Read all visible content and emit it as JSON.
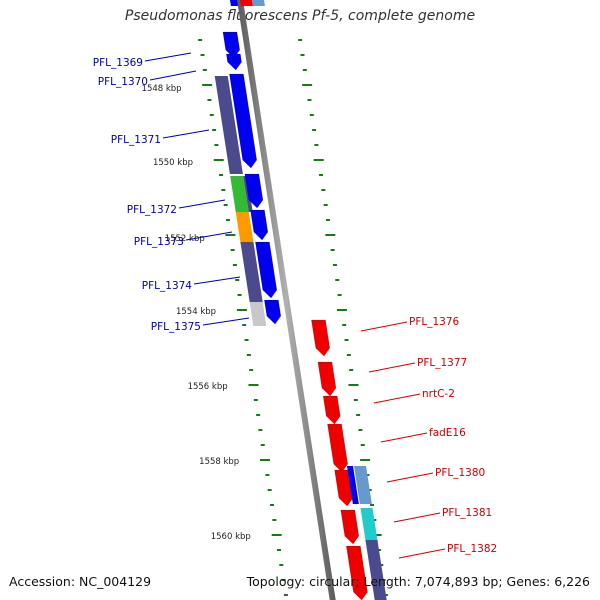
{
  "title": "Pseudomonas fluorescens Pf-5, complete genome",
  "accession": "Accession: NC_004129",
  "topology": "Topology: circular; Length: 7,074,893 bp; Genes: 6,226",
  "colors": {
    "forward_cds": "#0000ee",
    "reverse_cds": "#ee0000",
    "cog_dark": "#4a4a8c",
    "cog_green": "#33bb33",
    "cog_orange": "#ff9900",
    "cog_cyan": "#22cccc",
    "cog_light": "#c8c8c8",
    "cog_steel": "#6699cc",
    "tick": "#1a7a1a",
    "backbone": "#888888",
    "label_forward": "#0000aa",
    "label_reverse": "#cc0000"
  },
  "scale_labels": [
    "1548 kbp",
    "1550 kbp",
    "1552 kbp",
    "1554 kbp",
    "1556 kbp",
    "1558 kbp",
    "1560 kbp"
  ],
  "forward_genes": [
    "PFL_1369",
    "PFL_1370",
    "PFL_1371",
    "PFL_1372",
    "PFL_1373",
    "PFL_1374",
    "PFL_1375"
  ],
  "reverse_genes": [
    "PFL_1376",
    "PFL_1377",
    "nrtC-2",
    "fadE16",
    "PFL_1380",
    "PFL_1381",
    "PFL_1382"
  ]
}
